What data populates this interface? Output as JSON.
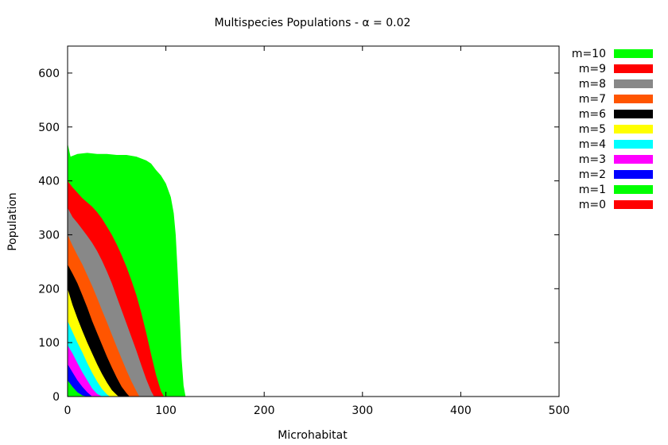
{
  "chart_data": {
    "type": "area",
    "title": "Multispecies Populations - α = 0.02",
    "xlabel": "Microhabitat",
    "ylabel": "Population",
    "xlim": [
      0,
      500
    ],
    "ylim": [
      0,
      650
    ],
    "xticks": [
      0,
      100,
      200,
      300,
      400,
      500
    ],
    "yticks": [
      0,
      100,
      200,
      300,
      400,
      500,
      600
    ],
    "grid": false,
    "legend_position": "right-outside",
    "stacked": true,
    "series": [
      {
        "name": "m=0",
        "color": "#ff0000",
        "points": [
          [
            0,
            0
          ],
          [
            120,
            0
          ]
        ]
      },
      {
        "name": "m=1",
        "color": "#00ff00",
        "points": [
          [
            0,
            30
          ],
          [
            5,
            18
          ],
          [
            10,
            8
          ],
          [
            15,
            2
          ],
          [
            20,
            0
          ]
        ]
      },
      {
        "name": "m=2",
        "color": "#0000ff",
        "points": [
          [
            0,
            60
          ],
          [
            5,
            45
          ],
          [
            10,
            30
          ],
          [
            15,
            18
          ],
          [
            20,
            8
          ],
          [
            25,
            0
          ]
        ]
      },
      {
        "name": "m=3",
        "color": "#ff00ff",
        "points": [
          [
            0,
            95
          ],
          [
            5,
            80
          ],
          [
            10,
            62
          ],
          [
            15,
            45
          ],
          [
            20,
            30
          ],
          [
            25,
            15
          ],
          [
            30,
            5
          ],
          [
            35,
            0
          ]
        ]
      },
      {
        "name": "m=4",
        "color": "#00ffff",
        "points": [
          [
            0,
            140
          ],
          [
            5,
            120
          ],
          [
            10,
            100
          ],
          [
            15,
            82
          ],
          [
            20,
            62
          ],
          [
            25,
            44
          ],
          [
            30,
            28
          ],
          [
            35,
            14
          ],
          [
            40,
            4
          ],
          [
            43,
            0
          ]
        ]
      },
      {
        "name": "m=5",
        "color": "#ffff00",
        "points": [
          [
            0,
            200
          ],
          [
            5,
            170
          ],
          [
            10,
            145
          ],
          [
            15,
            122
          ],
          [
            20,
            100
          ],
          [
            25,
            80
          ],
          [
            30,
            60
          ],
          [
            35,
            42
          ],
          [
            40,
            26
          ],
          [
            45,
            12
          ],
          [
            50,
            3
          ],
          [
            52,
            0
          ]
        ]
      },
      {
        "name": "m=6",
        "color": "#000000",
        "points": [
          [
            0,
            245
          ],
          [
            5,
            228
          ],
          [
            10,
            210
          ],
          [
            15,
            188
          ],
          [
            20,
            165
          ],
          [
            25,
            140
          ],
          [
            30,
            118
          ],
          [
            35,
            96
          ],
          [
            40,
            74
          ],
          [
            45,
            54
          ],
          [
            50,
            35
          ],
          [
            55,
            18
          ],
          [
            60,
            6
          ],
          [
            63,
            0
          ]
        ]
      },
      {
        "name": "m=7",
        "color": "#ff5500",
        "points": [
          [
            0,
            300
          ],
          [
            5,
            280
          ],
          [
            10,
            262
          ],
          [
            15,
            245
          ],
          [
            20,
            225
          ],
          [
            25,
            205
          ],
          [
            30,
            183
          ],
          [
            35,
            160
          ],
          [
            40,
            138
          ],
          [
            45,
            115
          ],
          [
            50,
            92
          ],
          [
            55,
            70
          ],
          [
            60,
            48
          ],
          [
            65,
            28
          ],
          [
            70,
            10
          ],
          [
            73,
            0
          ]
        ]
      },
      {
        "name": "m=8",
        "color": "#888888",
        "points": [
          [
            0,
            350
          ],
          [
            5,
            333
          ],
          [
            10,
            322
          ],
          [
            15,
            310
          ],
          [
            20,
            298
          ],
          [
            25,
            285
          ],
          [
            30,
            270
          ],
          [
            35,
            252
          ],
          [
            40,
            232
          ],
          [
            45,
            210
          ],
          [
            50,
            185
          ],
          [
            55,
            160
          ],
          [
            60,
            135
          ],
          [
            65,
            110
          ],
          [
            70,
            85
          ],
          [
            75,
            58
          ],
          [
            80,
            32
          ],
          [
            85,
            10
          ],
          [
            88,
            0
          ]
        ]
      },
      {
        "name": "m=9",
        "color": "#ff0000",
        "points": [
          [
            0,
            400
          ],
          [
            5,
            388
          ],
          [
            10,
            378
          ],
          [
            15,
            368
          ],
          [
            20,
            360
          ],
          [
            25,
            352
          ],
          [
            30,
            342
          ],
          [
            35,
            330
          ],
          [
            40,
            315
          ],
          [
            45,
            300
          ],
          [
            50,
            282
          ],
          [
            55,
            262
          ],
          [
            60,
            240
          ],
          [
            65,
            215
          ],
          [
            70,
            188
          ],
          [
            75,
            155
          ],
          [
            80,
            118
          ],
          [
            85,
            78
          ],
          [
            90,
            40
          ],
          [
            95,
            10
          ],
          [
            98,
            0
          ]
        ]
      },
      {
        "name": "m=10",
        "color": "#00ff00",
        "points": [
          [
            0,
            470
          ],
          [
            3,
            445
          ],
          [
            10,
            450
          ],
          [
            20,
            452
          ],
          [
            30,
            450
          ],
          [
            40,
            450
          ],
          [
            50,
            448
          ],
          [
            60,
            448
          ],
          [
            70,
            445
          ],
          [
            80,
            438
          ],
          [
            85,
            432
          ],
          [
            90,
            420
          ],
          [
            95,
            410
          ],
          [
            100,
            395
          ],
          [
            105,
            370
          ],
          [
            108,
            340
          ],
          [
            110,
            300
          ],
          [
            112,
            230
          ],
          [
            114,
            150
          ],
          [
            116,
            70
          ],
          [
            118,
            20
          ],
          [
            120,
            0
          ]
        ]
      }
    ]
  }
}
